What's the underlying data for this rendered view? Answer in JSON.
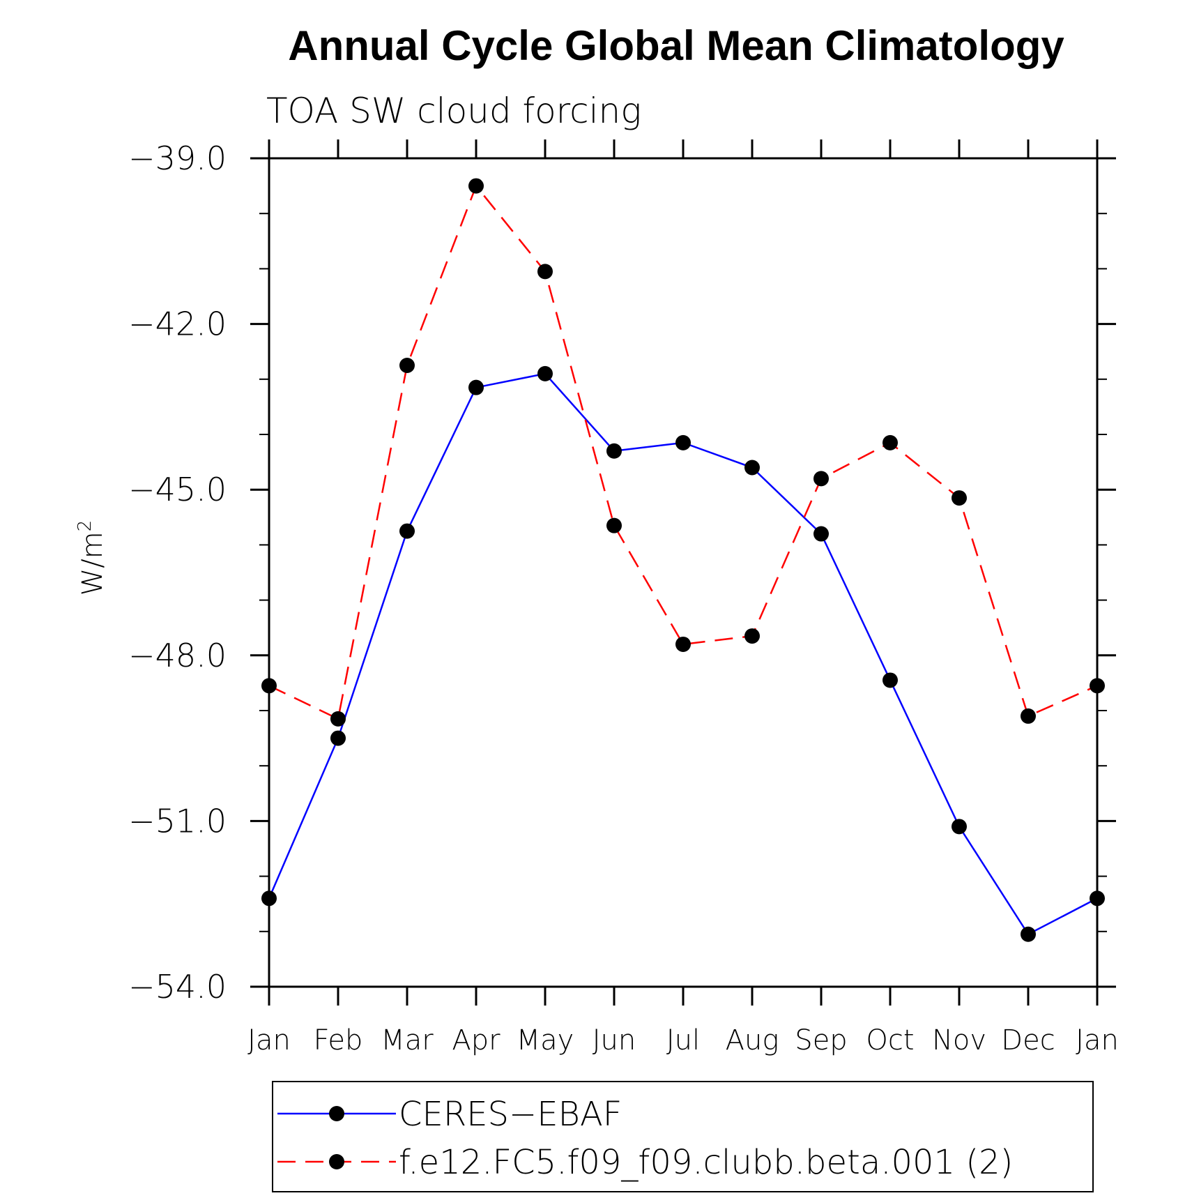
{
  "chart_data": {
    "type": "line",
    "title": "Annual Cycle Global Mean Climatology",
    "subtitle": "TOA SW cloud forcing",
    "ylabel": "W/m",
    "ylabel_superscript": "2",
    "xlabel": "",
    "categories": [
      "Jan",
      "Feb",
      "Mar",
      "Apr",
      "May",
      "Jun",
      "Jul",
      "Aug",
      "Sep",
      "Oct",
      "Nov",
      "Dec",
      "Jan"
    ],
    "ylim": [
      -54.0,
      -39.0
    ],
    "yticks_major": [
      -39.0,
      -42.0,
      -45.0,
      -48.0,
      -51.0,
      -54.0
    ],
    "ytick_labels": [
      "−39.0",
      "−42.0",
      "−45.0",
      "−48.0",
      "−51.0",
      "−54.0"
    ],
    "yticks_minor": [
      -40.0,
      -41.0,
      -43.0,
      -44.0,
      -46.0,
      -47.0,
      -49.0,
      -50.0,
      -52.0,
      -53.0
    ],
    "grid": false,
    "legend_position": "bottom",
    "series": [
      {
        "name": "CERES−EBAF",
        "color": "#0000ff",
        "line_style": "solid",
        "marker": "filled-circle",
        "values": [
          -52.4,
          -49.5,
          -45.75,
          -43.15,
          -42.9,
          -44.3,
          -44.15,
          -44.6,
          -45.8,
          -48.45,
          -51.1,
          -53.05,
          -52.4
        ]
      },
      {
        "name": "f.e12.FC5.f09_f09.clubb.beta.001 (2)",
        "color": "#ff0000",
        "line_style": "dashed",
        "marker": "filled-circle",
        "values": [
          -48.55,
          -49.15,
          -42.75,
          -39.5,
          -41.05,
          -45.65,
          -47.8,
          -47.65,
          -44.8,
          -44.15,
          -45.15,
          -49.1,
          -48.55
        ]
      }
    ]
  }
}
